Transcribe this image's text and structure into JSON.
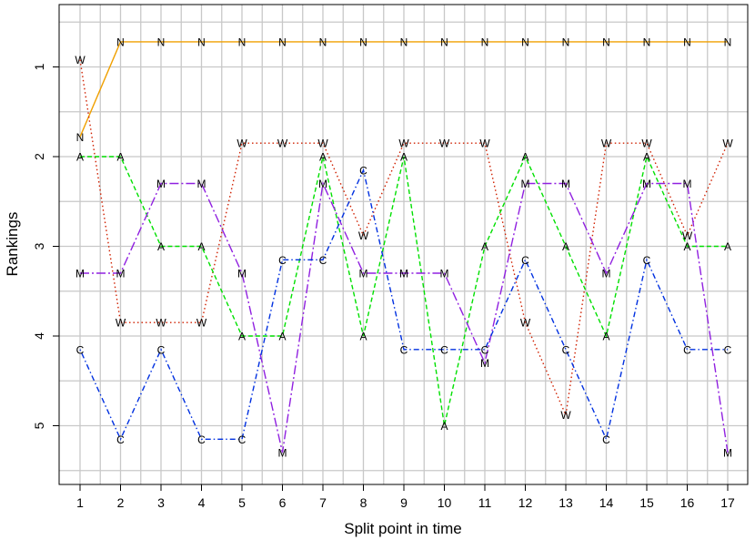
{
  "chart_data": {
    "type": "line",
    "title": "",
    "xlabel": "Split point in time",
    "ylabel": "Rankings",
    "x": [
      1,
      2,
      3,
      4,
      5,
      6,
      7,
      8,
      9,
      10,
      11,
      12,
      13,
      14,
      15,
      16,
      17
    ],
    "xlim": [
      0.5,
      17.5
    ],
    "ylim": [
      5.6,
      0.4
    ],
    "y_inverted": true,
    "y_ticks": [
      1,
      2,
      3,
      4,
      5
    ],
    "grid": true,
    "series": [
      {
        "name": "N",
        "color": "#f0a000",
        "dash": "solid",
        "values": [
          1.78,
          0.72,
          0.72,
          0.72,
          0.72,
          0.72,
          0.72,
          0.72,
          0.72,
          0.72,
          0.72,
          0.72,
          0.72,
          0.72,
          0.72,
          0.72,
          0.72
        ],
        "labels": [
          "N",
          "N",
          "N",
          "N",
          "N",
          "N",
          "N",
          "N",
          "N",
          "N",
          "N",
          "N",
          "N",
          "N",
          "N",
          "N",
          "N"
        ]
      },
      {
        "name": "W",
        "color": "#d02000",
        "dash": "dotted",
        "values": [
          0.92,
          3.85,
          3.85,
          3.85,
          1.85,
          1.85,
          1.85,
          2.88,
          1.85,
          1.85,
          1.85,
          3.85,
          4.88,
          1.85,
          1.85,
          2.88,
          1.85
        ],
        "labels": [
          "W",
          "W",
          "W",
          "W",
          "W",
          "W",
          "W",
          "W",
          "W",
          "W",
          "W",
          "W",
          "W",
          "W",
          "W",
          "W",
          "W"
        ]
      },
      {
        "name": "A",
        "color": "#00e000",
        "dash": "dashed",
        "values": [
          2.0,
          2.0,
          3.0,
          3.0,
          4.0,
          4.0,
          2.0,
          4.0,
          2.0,
          5.0,
          3.0,
          2.0,
          3.0,
          4.0,
          2.0,
          3.0,
          3.0
        ],
        "labels": [
          "A",
          "A",
          "A",
          "A",
          "A",
          "A",
          "A",
          "A",
          "A",
          "A",
          "A",
          "A",
          "A",
          "A",
          "A",
          "A",
          "A"
        ]
      },
      {
        "name": "M",
        "color": "#9020e0",
        "dash": "longdash",
        "values": [
          3.3,
          3.3,
          2.3,
          2.3,
          3.3,
          5.3,
          2.3,
          3.3,
          3.3,
          3.3,
          4.3,
          2.3,
          2.3,
          3.3,
          2.3,
          2.3,
          5.3
        ],
        "labels": [
          "M",
          "M",
          "M",
          "M",
          "M",
          "M",
          "M",
          "M",
          "M",
          "M",
          "M",
          "M",
          "M",
          "M",
          "M",
          "M",
          "M"
        ]
      },
      {
        "name": "C",
        "color": "#0030e0",
        "dash": "dotdash",
        "values": [
          4.15,
          5.15,
          4.15,
          5.15,
          5.15,
          3.15,
          3.15,
          2.15,
          4.15,
          4.15,
          4.15,
          3.15,
          4.15,
          5.15,
          3.15,
          4.15,
          4.15
        ],
        "labels": [
          "C",
          "C",
          "C",
          "C",
          "C",
          "C",
          "C",
          "C",
          "C",
          "C",
          "C",
          "C",
          "C",
          "C",
          "C",
          "C",
          "C"
        ]
      }
    ]
  }
}
